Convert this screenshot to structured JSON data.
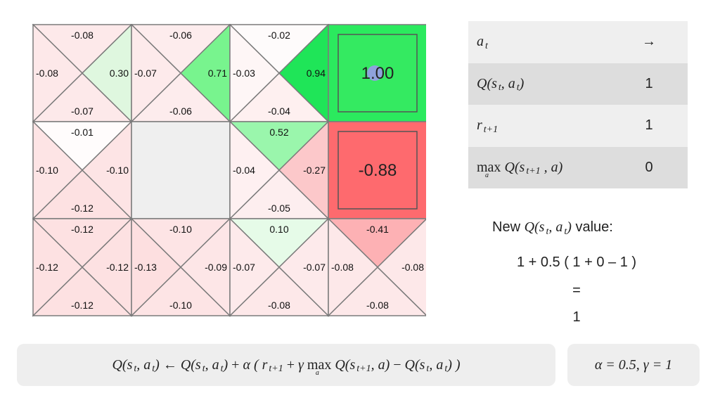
{
  "grid": {
    "cells": [
      {
        "row": 0,
        "col": 0,
        "type": "q",
        "up": "-0.08",
        "left": "-0.08",
        "right": "0.30",
        "down": "-0.07",
        "colors": {
          "up": "#fde9ea",
          "left": "#fde8e9",
          "right": "#dff7df",
          "down": "#fde9ea"
        }
      },
      {
        "row": 0,
        "col": 1,
        "type": "q",
        "up": "-0.06",
        "left": "-0.07",
        "right": "0.71",
        "down": "-0.06",
        "colors": {
          "up": "#fdeced",
          "left": "#fdeaeb",
          "right": "#78f48e",
          "down": "#fdeced"
        }
      },
      {
        "row": 0,
        "col": 2,
        "type": "q",
        "up": "-0.02",
        "left": "-0.03",
        "right": "0.94",
        "down": "-0.04",
        "colors": {
          "up": "#fefbfb",
          "left": "#fef6f6",
          "right": "#1fe558",
          "down": "#fef0f0"
        }
      },
      {
        "row": 0,
        "col": 3,
        "type": "terminal",
        "value": "1.00",
        "fill": "#2bea5e",
        "inner": "#34ea61"
      },
      {
        "row": 1,
        "col": 0,
        "type": "q",
        "up": "-0.01",
        "left": "-0.10",
        "right": "-0.10",
        "down": "-0.12",
        "colors": {
          "up": "#fffcfc",
          "left": "#fde4e5",
          "right": "#fde4e5",
          "down": "#fde1e2"
        }
      },
      {
        "row": 1,
        "col": 1,
        "type": "wall",
        "fill": "#efefef"
      },
      {
        "row": 1,
        "col": 2,
        "type": "q",
        "up": "0.52",
        "left": "-0.04",
        "right": "-0.27",
        "down": "-0.05",
        "colors": {
          "up": "#9af6ac",
          "left": "#fef0f1",
          "right": "#fcc8ca",
          "down": "#fdeeef"
        }
      },
      {
        "row": 1,
        "col": 3,
        "type": "terminal",
        "value": "-0.88",
        "fill": "#fe6a6e",
        "inner": "#fe6a6e"
      },
      {
        "row": 2,
        "col": 0,
        "type": "q",
        "up": "-0.12",
        "left": "-0.12",
        "right": "-0.12",
        "down": "-0.12",
        "colors": {
          "up": "#fde1e2",
          "left": "#fde1e2",
          "right": "#fde1e2",
          "down": "#fde1e2"
        }
      },
      {
        "row": 2,
        "col": 1,
        "type": "q",
        "up": "-0.10",
        "left": "-0.13",
        "right": "-0.09",
        "down": "-0.10",
        "colors": {
          "up": "#fde4e5",
          "left": "#fddfe0",
          "right": "#fde6e7",
          "down": "#fde4e5"
        }
      },
      {
        "row": 2,
        "col": 2,
        "type": "q",
        "up": "0.10",
        "left": "-0.07",
        "right": "-0.07",
        "down": "-0.08",
        "colors": {
          "up": "#e6fbe8",
          "left": "#fdeaeb",
          "right": "#fdeaeb",
          "down": "#fde8e9"
        }
      },
      {
        "row": 2,
        "col": 3,
        "type": "q",
        "up": "-0.41",
        "left": "-0.08",
        "right": "-0.08",
        "down": "-0.08",
        "colors": {
          "up": "#fdb1b4",
          "left": "#fde8e9",
          "right": "#fde8e9",
          "down": "#fde8e9"
        }
      }
    ],
    "agent": {
      "row": 0,
      "col": 3,
      "color": "#8fa2dc"
    }
  },
  "info_table": {
    "action_label": "a",
    "action_sub": "t",
    "action_value": "→",
    "q_label": "Q(s",
    "q_label_mid": ", a",
    "q_label_end": ")",
    "q_value": "1",
    "reward_label": "r",
    "reward_sub": "t+1",
    "reward_value": "1",
    "maxq_max": "max",
    "maxq_sub": "a",
    "maxq_label": "Q(s",
    "maxq_label_sub": "t+1",
    "maxq_label_end": ", a)",
    "maxq_value": "0"
  },
  "calculation": {
    "prefix": "New",
    "suffix": "value:",
    "expression": "1 + 0.5 ( 1 + 0 – 1 )",
    "equals": "=",
    "result": "1"
  },
  "formula": {
    "arrow": "←",
    "alpha": "α",
    "gamma": "γ",
    "params_text": "α = 0.5, γ = 1"
  }
}
